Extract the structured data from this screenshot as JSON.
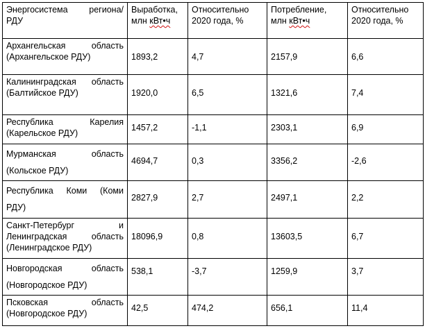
{
  "table": {
    "headers": [
      "Энергосистема региона/ РДУ",
      "Выработка, млн кВт•ч",
      "Относительно 2020 года, %",
      "Потребление, млн кВт•ч",
      "Относительно 2020 года, %"
    ],
    "rows": [
      [
        "Архангельская область (Архангельское РДУ)",
        "1893,2",
        "4,7",
        "2157,9",
        "6,6"
      ],
      [
        "Калининградская область (Балтийское РДУ)",
        "1920,0",
        "6,5",
        "1321,6",
        "7,4"
      ],
      [
        "Республика Карелия (Карельское РДУ)",
        "1457,2",
        "-1,1",
        "2303,1",
        "6,9"
      ],
      [
        "Мурманская область (Кольское РДУ)",
        "4694,7",
        "0,3",
        "3356,2",
        "-2,6"
      ],
      [
        "Республика Коми (Коми РДУ)",
        "2827,9",
        "2,7",
        "2497,1",
        "2,2"
      ],
      [
        "Санкт-Петербург и Ленинградская область (Ленинградское РДУ)",
        "18096,9",
        "0,8",
        "13603,5",
        "6,7"
      ],
      [
        "Новгородская область (Новгородское РДУ)",
        "538,1",
        "-3,7",
        "1259,9",
        "3,7"
      ],
      [
        "Псковская область (Новгородское РДУ)",
        "42,5",
        "474,2",
        "656,1",
        "11,4"
      ]
    ]
  }
}
